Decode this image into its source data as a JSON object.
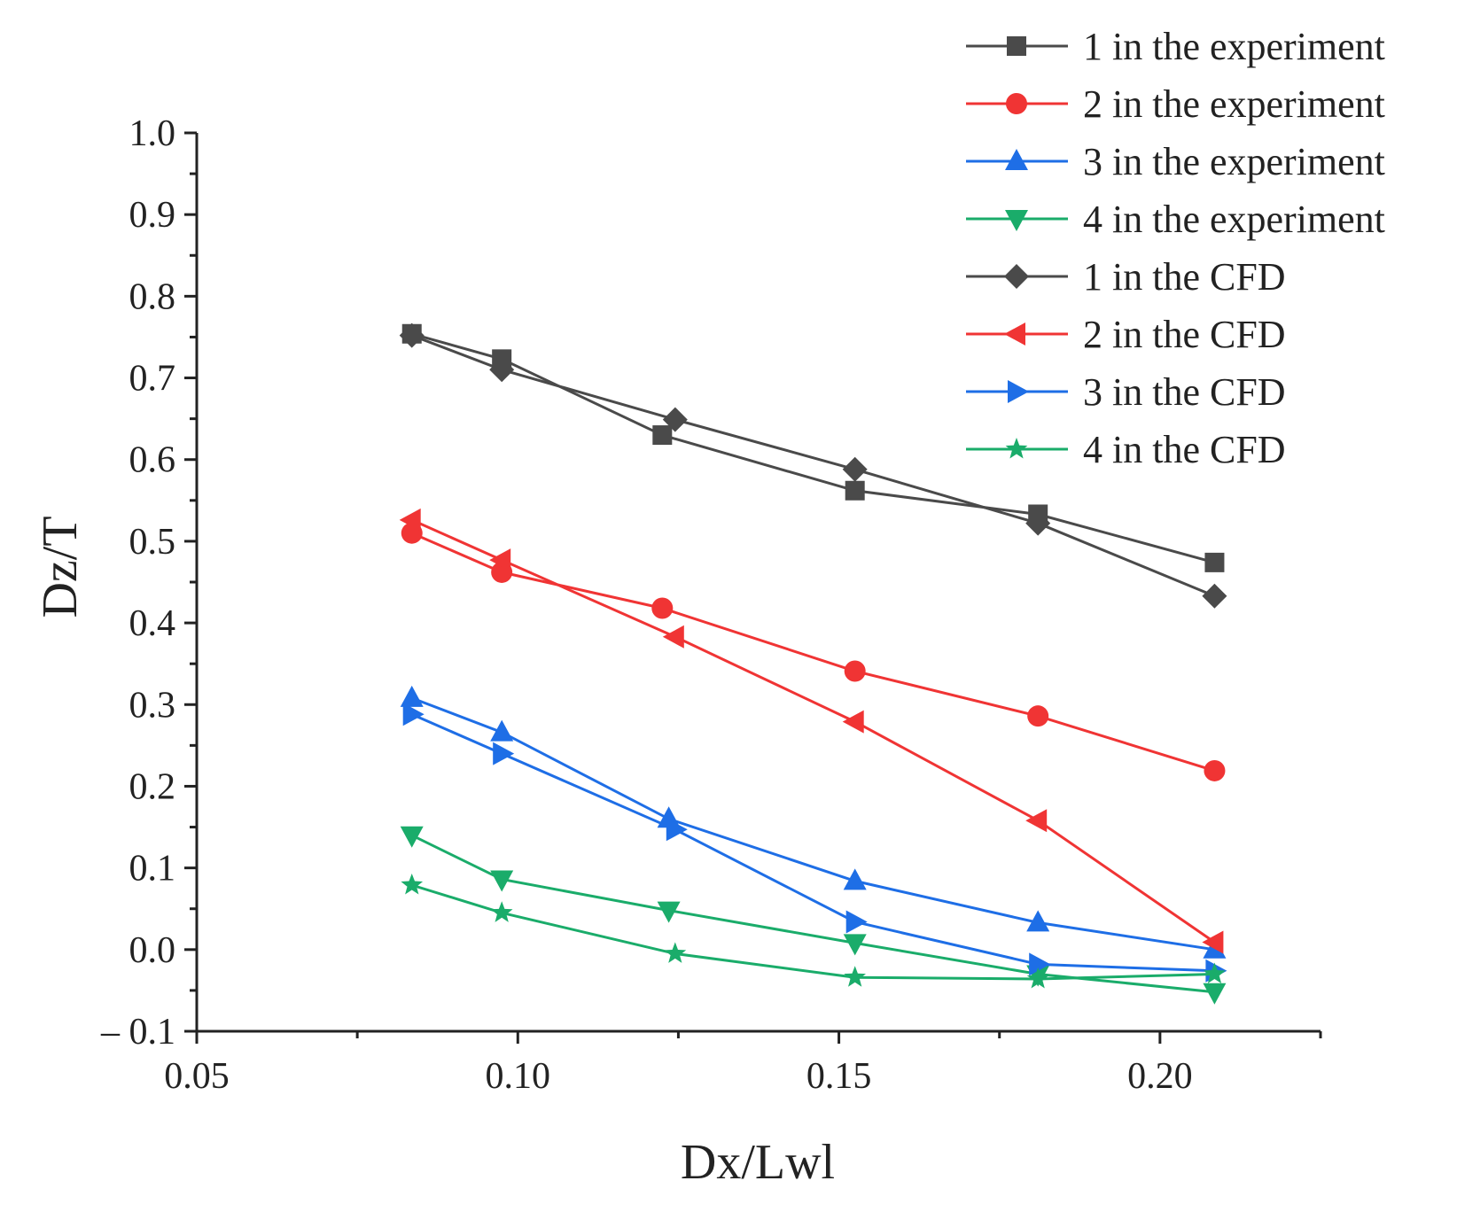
{
  "chart_data": {
    "type": "line",
    "title": "",
    "xlabel": "Dx/Lwl",
    "ylabel": "Dz/T",
    "xlim": [
      0.05,
      0.225
    ],
    "ylim": [
      -0.1,
      1.0
    ],
    "x_ticks": [
      0.05,
      0.1,
      0.15,
      0.2
    ],
    "x_tick_labels": [
      "0.05",
      "0.10",
      "0.15",
      "0.20"
    ],
    "x_minor_ticks": [
      0.075,
      0.125,
      0.175,
      0.225
    ],
    "y_ticks": [
      -0.1,
      0.0,
      0.1,
      0.2,
      0.3,
      0.4,
      0.5,
      0.6,
      0.7,
      0.8,
      0.9,
      1.0
    ],
    "y_tick_labels": [
      "– 0.1",
      "0.0",
      "0.1",
      "0.2",
      "0.3",
      "0.4",
      "0.5",
      "0.6",
      "0.7",
      "0.8",
      "0.9",
      "1.0"
    ],
    "y_minor_ticks": [
      -0.05,
      0.05,
      0.15,
      0.25,
      0.35,
      0.45,
      0.55,
      0.65,
      0.75,
      0.85,
      0.95
    ],
    "grid": false,
    "legend_position": "top-right",
    "series": [
      {
        "name": "1 in the experiment",
        "color": "#4a4a4a",
        "marker": "square",
        "x": [
          0.0835,
          0.0975,
          0.1225,
          0.1525,
          0.181,
          0.2085
        ],
        "y": [
          0.754,
          0.723,
          0.63,
          0.562,
          0.533,
          0.474
        ]
      },
      {
        "name": "2 in the experiment",
        "color": "#f03434",
        "marker": "circle",
        "x": [
          0.0835,
          0.0975,
          0.1225,
          0.1525,
          0.181,
          0.2085
        ],
        "y": [
          0.51,
          0.462,
          0.418,
          0.341,
          0.286,
          0.219
        ]
      },
      {
        "name": "3 in the experiment",
        "color": "#1e6ee6",
        "marker": "triangle-up",
        "x": [
          0.0835,
          0.0975,
          0.1235,
          0.1525,
          0.181,
          0.2085
        ],
        "y": [
          0.308,
          0.266,
          0.16,
          0.084,
          0.033,
          0.0
        ]
      },
      {
        "name": "4 in the experiment",
        "color": "#1aac6a",
        "marker": "triangle-down",
        "x": [
          0.0835,
          0.0975,
          0.1235,
          0.1525,
          0.181,
          0.2085
        ],
        "y": [
          0.14,
          0.086,
          0.048,
          0.008,
          -0.03,
          -0.052
        ]
      },
      {
        "name": "1 in the CFD",
        "color": "#4a4a4a",
        "marker": "diamond",
        "x": [
          0.0835,
          0.0975,
          0.1245,
          0.1525,
          0.181,
          0.2085
        ],
        "y": [
          0.752,
          0.71,
          0.649,
          0.588,
          0.522,
          0.433
        ]
      },
      {
        "name": "2 in the CFD",
        "color": "#f03434",
        "marker": "triangle-left",
        "x": [
          0.0835,
          0.0975,
          0.1245,
          0.1525,
          0.181,
          0.2085
        ],
        "y": [
          0.526,
          0.477,
          0.383,
          0.279,
          0.158,
          0.009
        ]
      },
      {
        "name": "3 in the CFD",
        "color": "#1e6ee6",
        "marker": "triangle-right",
        "x": [
          0.0835,
          0.0975,
          0.1245,
          0.1525,
          0.181,
          0.2085
        ],
        "y": [
          0.288,
          0.24,
          0.147,
          0.034,
          -0.018,
          -0.026
        ]
      },
      {
        "name": "4 in the CFD",
        "color": "#1aac6a",
        "marker": "star",
        "x": [
          0.0835,
          0.0975,
          0.1245,
          0.1525,
          0.181,
          0.2085
        ],
        "y": [
          0.079,
          0.045,
          -0.005,
          -0.034,
          -0.036,
          -0.03
        ]
      }
    ]
  }
}
